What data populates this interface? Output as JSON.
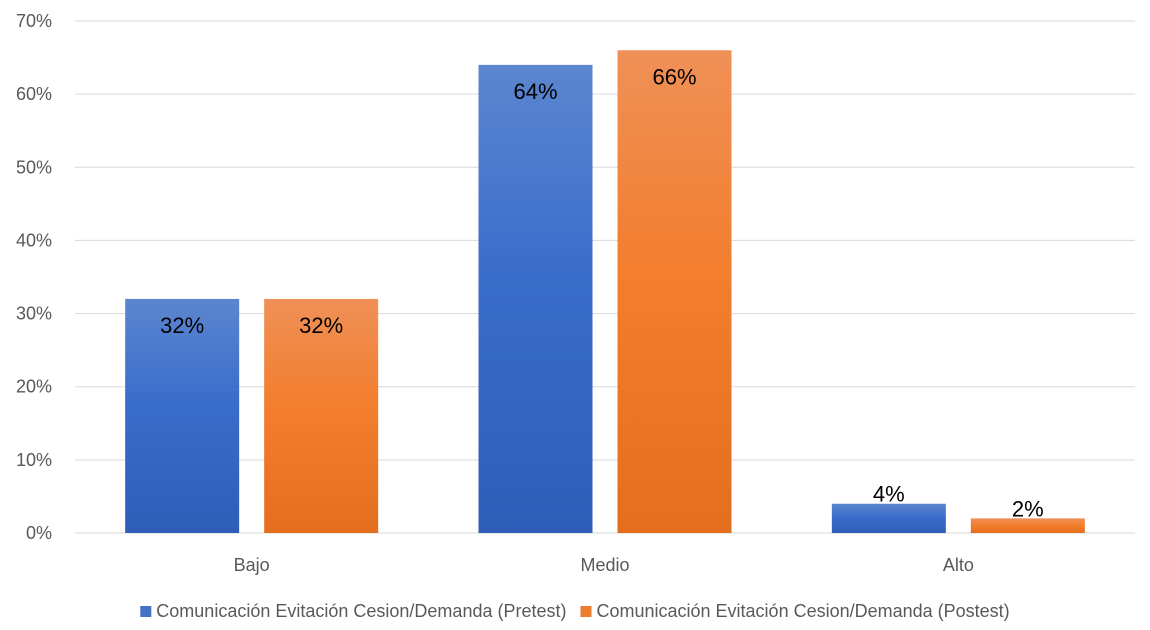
{
  "chart_data": {
    "type": "bar",
    "title": "",
    "xlabel": "",
    "ylabel": "",
    "categories": [
      "Bajo",
      "Medio",
      "Alto"
    ],
    "series": [
      {
        "name": "Comunicación Evitación Cesion/Demanda (Pretest)",
        "values": [
          32,
          64,
          4
        ],
        "labels": [
          "32%",
          "64%",
          "4%"
        ],
        "color": "#4472C4"
      },
      {
        "name": "Comunicación Evitación Cesion/Demanda (Postest)",
        "values": [
          32,
          66,
          2
        ],
        "labels": [
          "32%",
          "66%",
          "2%"
        ],
        "color": "#ED7D31"
      }
    ],
    "ylim": [
      0,
      70
    ],
    "yticks": [
      0,
      10,
      20,
      30,
      40,
      50,
      60,
      70
    ],
    "ytick_labels": [
      "0%",
      "10%",
      "20%",
      "30%",
      "40%",
      "50%",
      "60%",
      "70%"
    ],
    "grid": true,
    "legend_position": "bottom"
  }
}
